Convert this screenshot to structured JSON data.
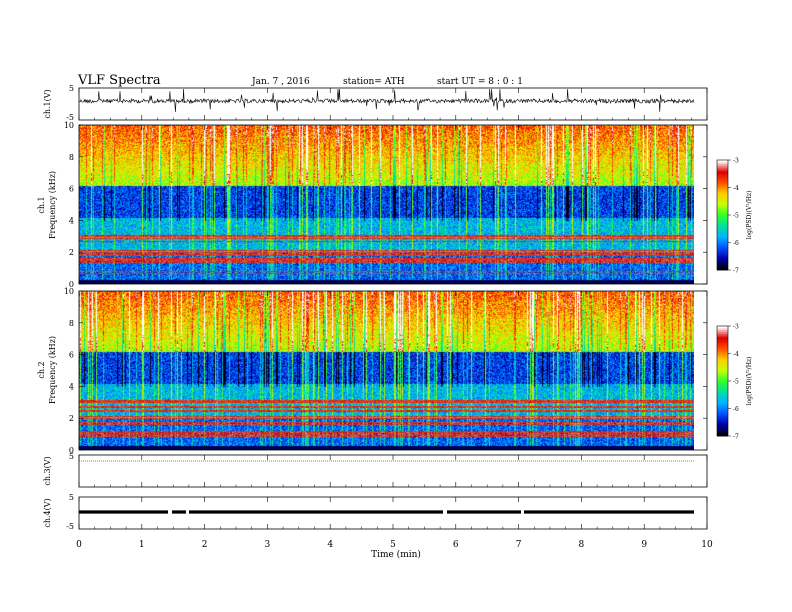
{
  "header": {
    "title": "VLF  Spectra",
    "date": "Jan. 7 , 2016",
    "station": "station= ATH",
    "start_ut": "start  UT  =   8  : 0  : 1"
  },
  "colorbar": {
    "label": "log(PSD)(V²/Hz)",
    "ticks": [
      "-7",
      "-6",
      "-5",
      "-4",
      "-3"
    ],
    "colors": [
      "#000000",
      "#0000aa",
      "#0050ff",
      "#00b4ff",
      "#00e0a0",
      "#30ff30",
      "#c8ff00",
      "#ffd000",
      "#ff5000",
      "#dd0000",
      "#ffffff"
    ]
  },
  "chart_data": [
    {
      "type": "line",
      "ylabel": "ch.1(V)",
      "ylim": [
        -5,
        5
      ],
      "yticks": [
        "5",
        "-5"
      ],
      "note": "broadband waveform, noisy near baseline"
    },
    {
      "type": "heatmap",
      "ylabel": "ch.1",
      "ylabel2": "Frequency (kHz)",
      "ylim": [
        0,
        10
      ],
      "yticks": [
        "0",
        "2",
        "4",
        "6",
        "8",
        "10"
      ],
      "xlim": [
        0,
        10
      ],
      "zlim": [
        -7,
        -3
      ],
      "colorbar_ticks": [
        "-7",
        "-6",
        "-5",
        "-4",
        "-3"
      ]
    },
    {
      "type": "heatmap",
      "ylabel": "ch.2",
      "ylabel2": "Frequency (kHz)",
      "ylim": [
        0,
        10
      ],
      "yticks": [
        "0",
        "2",
        "4",
        "6",
        "8",
        "10"
      ],
      "xlim": [
        0,
        10
      ],
      "zlim": [
        -7,
        -3
      ],
      "colorbar_ticks": [
        "-7",
        "-6",
        "-5",
        "-4",
        "-3"
      ]
    },
    {
      "type": "line",
      "ylabel": "ch.3(V)",
      "ylim": [
        -5,
        5
      ],
      "yticks": [
        "5"
      ]
    },
    {
      "type": "line",
      "ylabel": "ch.4(V)",
      "ylim": [
        -5,
        5
      ],
      "yticks": [
        "5",
        "-5"
      ]
    }
  ],
  "xaxis": {
    "label": "Time  (min)",
    "ticks": [
      "0",
      "1",
      "2",
      "3",
      "4",
      "5",
      "6",
      "7",
      "8",
      "9",
      "10"
    ],
    "xlim": [
      0,
      10
    ]
  }
}
